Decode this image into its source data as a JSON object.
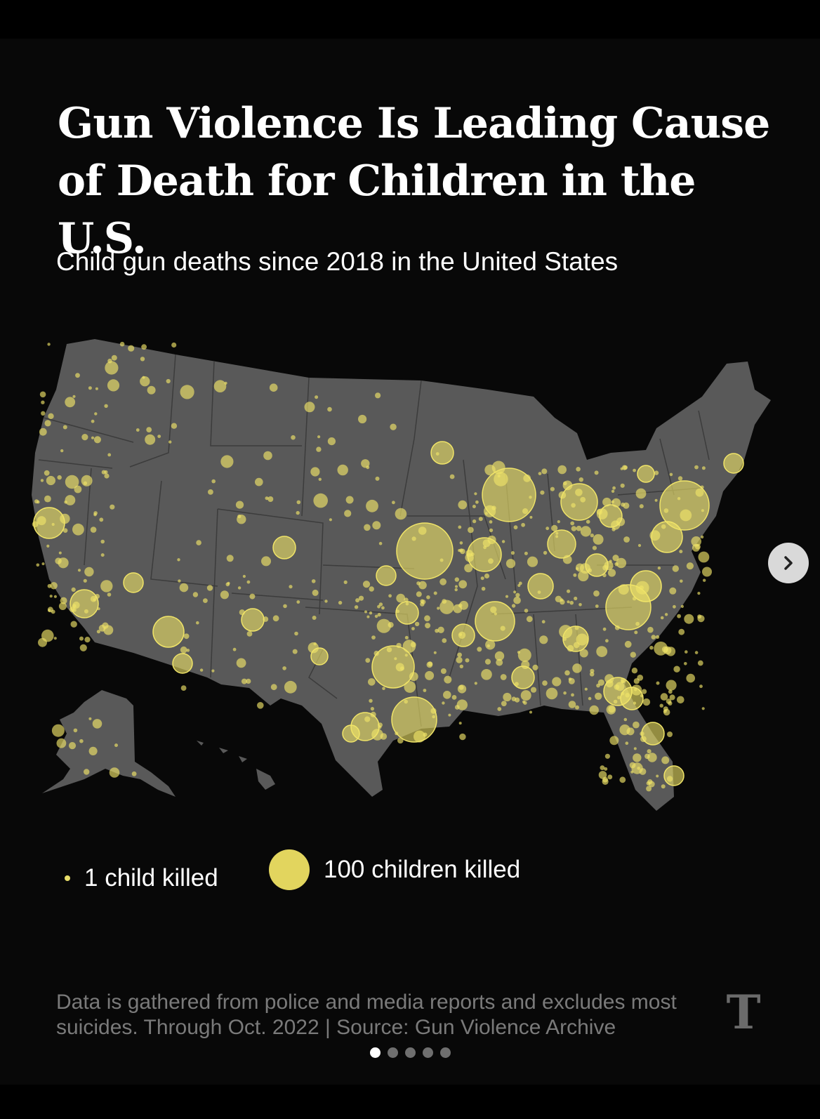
{
  "header": {
    "title": "Gun Violence Is Leading Cause of Death for Children in the U.S.",
    "subtitle": "Child gun deaths since 2018 in the United States"
  },
  "map": {
    "land_color": "#595959",
    "border_color": "#3c3c3c",
    "bubble_color": "#f0e468"
  },
  "legend": {
    "small_label": "1 child killed",
    "large_label": "100 children killed"
  },
  "footer": {
    "note": "Data is gathered from police and media reports and excludes most suicides. Through Oct. 2022 | Source: Gun Violence Archive",
    "logo_icon": "nyt-logo-icon"
  },
  "controls": {
    "next_icon": "chevron-right-icon",
    "pagination": {
      "current": 1,
      "total": 5
    }
  }
}
